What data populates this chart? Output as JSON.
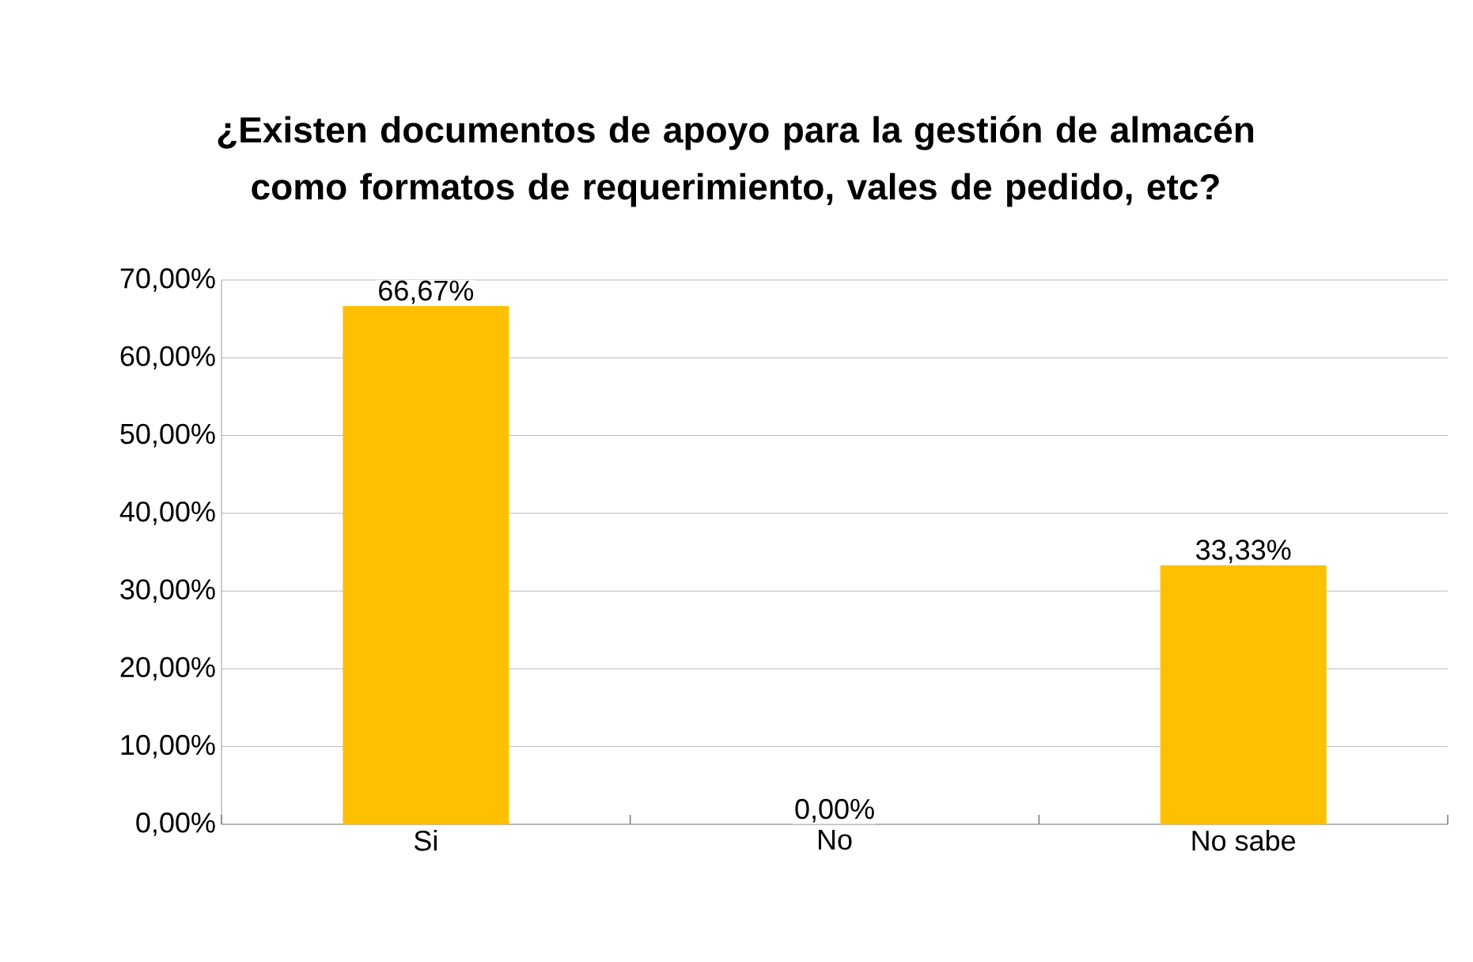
{
  "chart_data": {
    "type": "bar",
    "title": "¿Existen documentos de apoyo para la gestión de almacén como formatos de requerimiento, vales de pedido, etc?",
    "categories": [
      "Si",
      "No",
      "No sabe"
    ],
    "values": [
      66.67,
      0,
      33.33
    ],
    "value_labels": [
      "66,67%",
      "0,00%",
      "33,33%"
    ],
    "color": "#ffc000",
    "ylim": [
      0,
      70
    ],
    "yticks": [
      {
        "value": 0,
        "label": "0,00%"
      },
      {
        "value": 10,
        "label": "10,00%"
      },
      {
        "value": 20,
        "label": "20,00%"
      },
      {
        "value": 30,
        "label": "30,00%"
      },
      {
        "value": 40,
        "label": "40,00%"
      },
      {
        "value": 50,
        "label": "50,00%"
      },
      {
        "value": 60,
        "label": "60,00%"
      },
      {
        "value": 70,
        "label": "70,00%"
      }
    ],
    "grid": "y"
  }
}
